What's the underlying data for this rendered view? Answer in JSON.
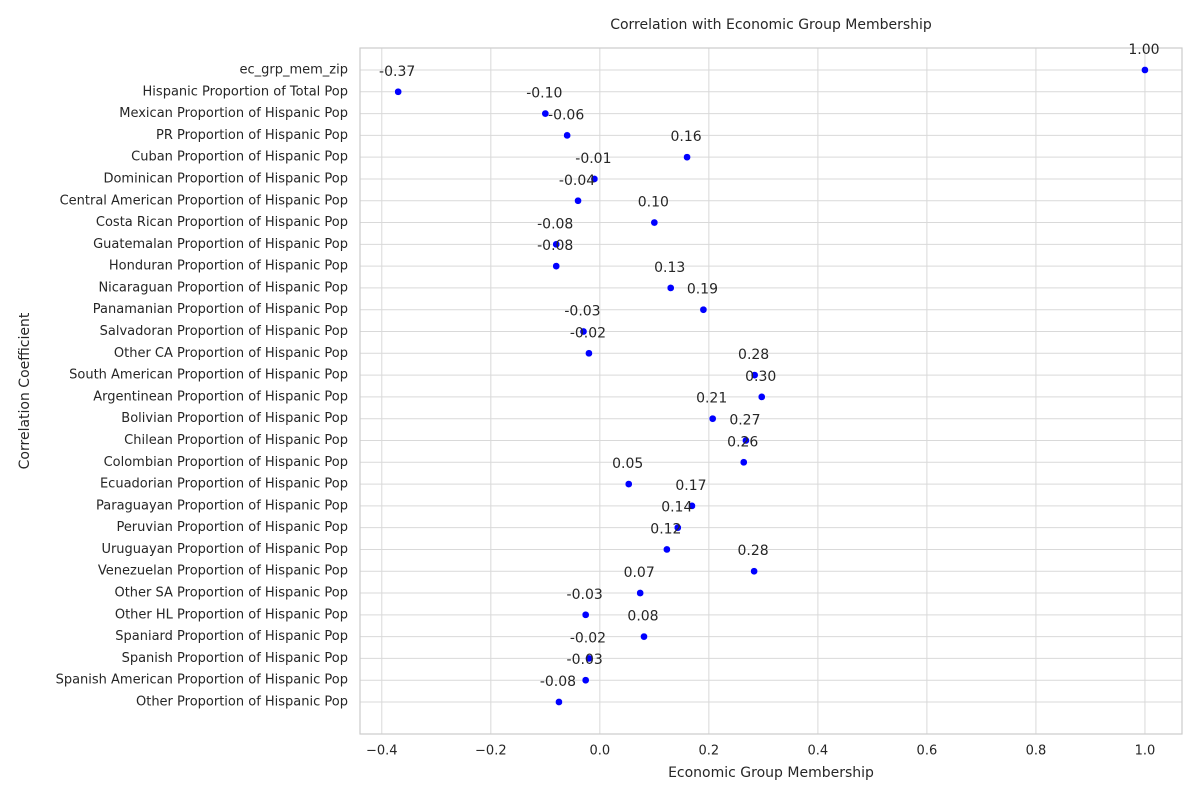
{
  "chart_data": {
    "type": "scatter",
    "title": "Correlation with Economic Group Membership",
    "x_label": "Economic Group Membership",
    "y_label": "Correlation Coefficient",
    "categories": [
      "ec_grp_mem_zip",
      "Hispanic Proportion of Total Pop",
      "Mexican Proportion of Hispanic Pop",
      "PR Proportion of Hispanic Pop",
      "Cuban Proportion of Hispanic Pop",
      "Dominican Proportion of Hispanic Pop",
      "Central American Proportion of Hispanic Pop",
      "Costa Rican Proportion of Hispanic Pop",
      "Guatemalan Proportion of Hispanic Pop",
      "Honduran Proportion of Hispanic Pop",
      "Nicaraguan Proportion of Hispanic Pop",
      "Panamanian Proportion of Hispanic Pop",
      "Salvadoran Proportion of Hispanic Pop",
      "Other CA Proportion of Hispanic Pop",
      "South American Proportion of Hispanic Pop",
      "Argentinean Proportion of Hispanic Pop",
      "Bolivian Proportion of Hispanic Pop",
      "Chilean Proportion of Hispanic Pop",
      "Colombian Proportion of Hispanic Pop",
      "Ecuadorian Proportion of Hispanic Pop",
      "Paraguayan Proportion of Hispanic Pop",
      "Peruvian Proportion of Hispanic Pop",
      "Uruguayan Proportion of Hispanic Pop",
      "Venezuelan Proportion of Hispanic Pop",
      "Other SA Proportion of Hispanic Pop",
      "Other HL Proportion of Hispanic Pop",
      "Spaniard Proportion of Hispanic Pop",
      "Spanish Proportion of Hispanic Pop",
      "Spanish American Proportion of Hispanic Pop",
      "Other Proportion of Hispanic Pop"
    ],
    "values": [
      1.0,
      -0.37,
      -0.1,
      -0.06,
      0.16,
      -0.01,
      -0.04,
      0.1,
      -0.08,
      -0.08,
      0.13,
      0.19,
      -0.03,
      -0.02,
      0.284,
      0.297,
      0.207,
      0.268,
      0.264,
      0.053,
      0.169,
      0.143,
      0.123,
      0.283,
      0.074,
      -0.026,
      0.081,
      -0.02,
      -0.026,
      -0.075
    ],
    "value_labels": [
      "1.00",
      "-0.37",
      "-0.10",
      "-0.06",
      "0.16",
      "-0.01",
      "-0.04",
      "0.10",
      "-0.08",
      "-0.08",
      "0.13",
      "0.19",
      "-0.03",
      "-0.02",
      "0.28",
      "0.30",
      "0.21",
      "0.27",
      "0.26",
      "0.05",
      "0.17",
      "0.14",
      "0.12",
      "0.28",
      "0.07",
      "-0.03",
      "0.08",
      "-0.02",
      "-0.03",
      "-0.08"
    ],
    "color": "#0000ff",
    "xlim": [
      -0.44,
      1.068
    ],
    "xticks": [
      {
        "value": -0.4,
        "label": "−0.4"
      },
      {
        "value": -0.2,
        "label": "−0.2"
      },
      {
        "value": 0,
        "label": "0.0"
      },
      0.2,
      0.4,
      0.6,
      0.8,
      {
        "value": 1,
        "label": "1.0"
      }
    ],
    "grid": true
  }
}
